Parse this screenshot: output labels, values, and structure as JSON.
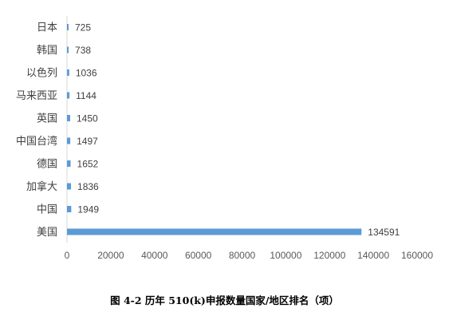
{
  "chart_data": {
    "type": "bar",
    "orientation": "horizontal",
    "categories": [
      "日本",
      "韩国",
      "以色列",
      "马来西亚",
      "英国",
      "中国台湾",
      "德国",
      "加拿大",
      "中国",
      "美国"
    ],
    "values": [
      725,
      738,
      1036,
      1144,
      1450,
      1497,
      1652,
      1836,
      1949,
      134591
    ],
    "data_labels": [
      "725",
      "738",
      "1036",
      "1144",
      "1450",
      "1497",
      "1652",
      "1836",
      "1949",
      "134591"
    ],
    "x_ticks": [
      0,
      20000,
      40000,
      60000,
      80000,
      100000,
      120000,
      140000,
      160000
    ],
    "x_tick_labels": [
      "0",
      "20000",
      "40000",
      "60000",
      "80000",
      "100000",
      "120000",
      "140000",
      "160000"
    ],
    "xlim": [
      0,
      160000
    ],
    "grid": false,
    "legend": "none",
    "bar_color": "#5B9BD5"
  },
  "caption": "图 4-2 历年 510(k)申报数量国家/地区排名（项）"
}
